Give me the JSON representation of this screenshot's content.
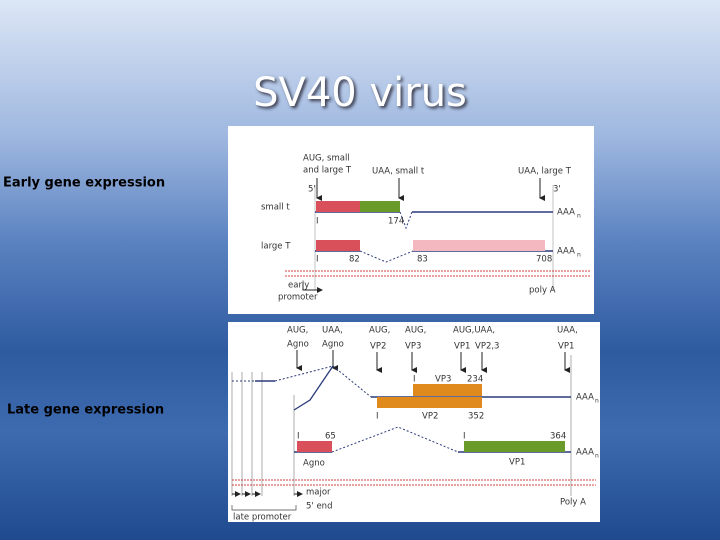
{
  "title": "SV40 virus",
  "early": {
    "label": "Early gene expression",
    "texts": [
      "AUG, small",
      "and large T",
      "UAA, small t",
      "UAA, large T",
      "5'",
      "3'",
      "small t",
      "AAA",
      "n",
      "I",
      "174",
      "large T",
      "AAA",
      "n",
      "I",
      "82",
      "83",
      "708",
      "early",
      "promoter",
      "poly A"
    ]
  },
  "late": {
    "label": "Late gene expression",
    "texts": [
      "AUG,",
      "Agno",
      "UAA,",
      "Agno",
      "AUG,",
      "VP2",
      "AUG,",
      "VP3",
      "AUG,UAA,",
      "VP1",
      "VP2,3",
      "UAA,",
      "VP1",
      "I",
      "VP3",
      "234",
      "I",
      "VP2",
      "352",
      "AAA",
      "n",
      "I",
      "65",
      "I",
      "364",
      "Agno",
      "VP1",
      "AAA",
      "n",
      "major",
      "5' end",
      "Poly A",
      "late promoter"
    ]
  }
}
